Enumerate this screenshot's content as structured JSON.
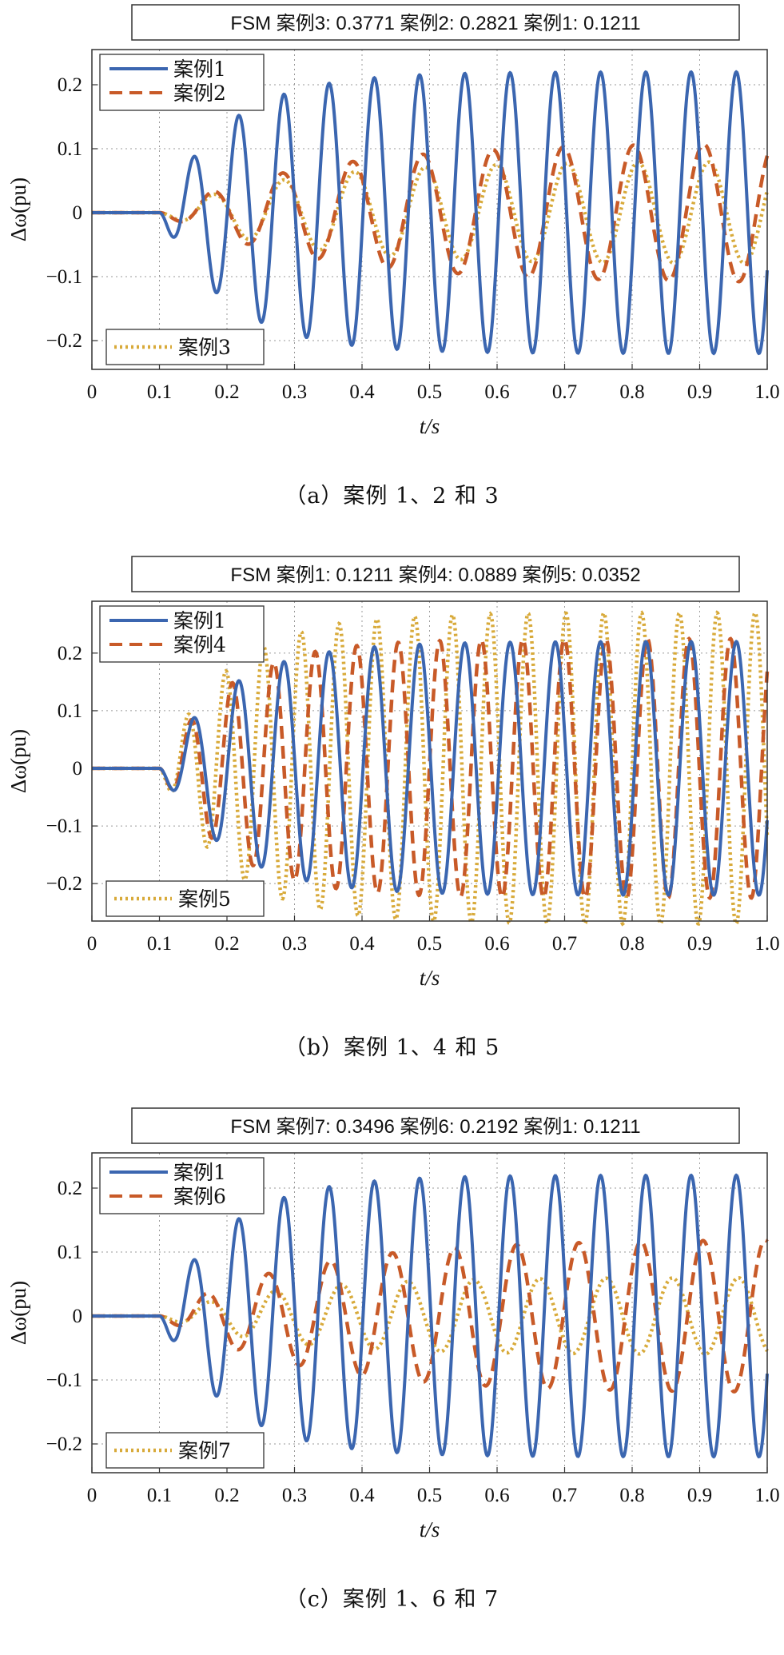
{
  "chart_data": [
    {
      "type": "line",
      "id": "a",
      "caption": "（a）案例 1、2 和 3",
      "fsm_text": "FSM    案例3: 0.3771  案例2: 0.2821  案例1: 0.1211",
      "xlabel": "t/s",
      "ylabel": "Δω(pu)",
      "xlim": [
        0,
        1.0
      ],
      "ylim": [
        -0.245,
        0.255
      ],
      "xticks": [
        "0",
        "0.1",
        "0.2",
        "0.3",
        "0.4",
        "0.5",
        "0.6",
        "0.7",
        "0.8",
        "0.9",
        "1.0"
      ],
      "yticks": [
        "0.2",
        "0.1",
        "0",
        "-0.1",
        "-0.2"
      ],
      "grid": true,
      "legend_top": [
        "案例1",
        "案例2"
      ],
      "legend_bottom": [
        "案例3"
      ],
      "series": [
        {
          "name": "案例1",
          "color": "#3b66b0",
          "style": "solid",
          "period": 0.067,
          "amplitude": 0.22,
          "rise": 0.1
        },
        {
          "name": "案例2",
          "color": "#c85a28",
          "style": "dashed",
          "period": 0.104,
          "amplitude": 0.11,
          "rise": 0.22
        },
        {
          "name": "案例3",
          "color": "#d8aa3a",
          "style": "dotted",
          "period": 0.105,
          "amplitude": 0.08,
          "rise": 0.18
        }
      ]
    },
    {
      "type": "line",
      "id": "b",
      "caption": "（b）案例 1、4 和 5",
      "fsm_text": "FSM    案例1: 0.1211  案例4: 0.0889  案例5: 0.0352",
      "xlabel": "t/s",
      "ylabel": "Δω(pu)",
      "xlim": [
        0,
        1.0
      ],
      "ylim": [
        -0.265,
        0.29
      ],
      "xticks": [
        "0",
        "0.1",
        "0.2",
        "0.3",
        "0.4",
        "0.5",
        "0.6",
        "0.7",
        "0.8",
        "0.9",
        "1.0"
      ],
      "yticks": [
        "0.2",
        "0.1",
        "0",
        "-0.1",
        "-0.2"
      ],
      "grid": true,
      "legend_top": [
        "案例1",
        "案例4"
      ],
      "legend_bottom": [
        "案例5"
      ],
      "series": [
        {
          "name": "案例1",
          "color": "#3b66b0",
          "style": "solid",
          "period": 0.067,
          "amplitude": 0.22,
          "rise": 0.1
        },
        {
          "name": "案例4",
          "color": "#c85a28",
          "style": "dashed",
          "period": 0.0615,
          "amplitude": 0.225,
          "rise": 0.1
        },
        {
          "name": "案例5",
          "color": "#d8aa3a",
          "style": "dotted",
          "period": 0.056,
          "amplitude": 0.27,
          "rise": 0.1
        }
      ]
    },
    {
      "type": "line",
      "id": "c",
      "caption": "（c）案例 1、6 和 7",
      "fsm_text": "FSM    案例7: 0.3496  案例6: 0.2192  案例1: 0.1211",
      "xlabel": "t/s",
      "ylabel": "Δω(pu)",
      "xlim": [
        0,
        1.0
      ],
      "ylim": [
        -0.245,
        0.255
      ],
      "xticks": [
        "0",
        "0.1",
        "0.2",
        "0.3",
        "0.4",
        "0.5",
        "0.6",
        "0.7",
        "0.8",
        "0.9",
        "1.0"
      ],
      "yticks": [
        "0.2",
        "0.1",
        "0",
        "-0.1",
        "-0.2"
      ],
      "grid": true,
      "legend_top": [
        "案例1",
        "案例6"
      ],
      "legend_bottom": [
        "案例7"
      ],
      "series": [
        {
          "name": "案例1",
          "color": "#3b66b0",
          "style": "solid",
          "period": 0.067,
          "amplitude": 0.22,
          "rise": 0.1
        },
        {
          "name": "案例6",
          "color": "#c85a28",
          "style": "dashed",
          "period": 0.092,
          "amplitude": 0.12,
          "rise": 0.2
        },
        {
          "name": "案例7",
          "color": "#d8aa3a",
          "style": "dotted",
          "period": 0.098,
          "amplitude": 0.06,
          "rise": 0.16
        }
      ]
    }
  ]
}
